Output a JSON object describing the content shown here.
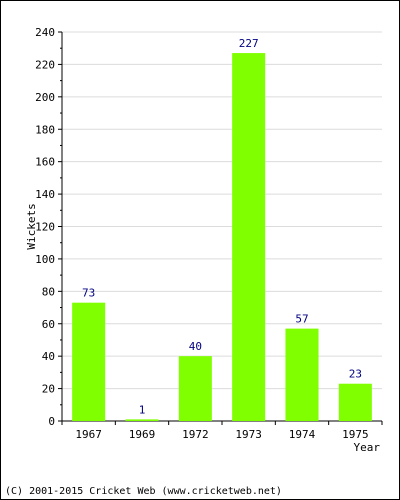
{
  "chart_data": {
    "type": "bar",
    "categories": [
      "1967",
      "1969",
      "1972",
      "1973",
      "1974",
      "1975"
    ],
    "values": [
      73,
      1,
      40,
      227,
      57,
      23
    ],
    "title": "",
    "xlabel": "Year",
    "ylabel": "Wickets",
    "ylim": [
      0,
      240
    ],
    "yticks": [
      0,
      20,
      40,
      60,
      80,
      100,
      120,
      140,
      160,
      180,
      200,
      220,
      240
    ],
    "grid": true,
    "data_labels": true,
    "bar_color": "#80ff00",
    "label_color": "#000080"
  },
  "footer": {
    "copyright": "(C) 2001-2015 Cricket Web (www.cricketweb.net)"
  }
}
